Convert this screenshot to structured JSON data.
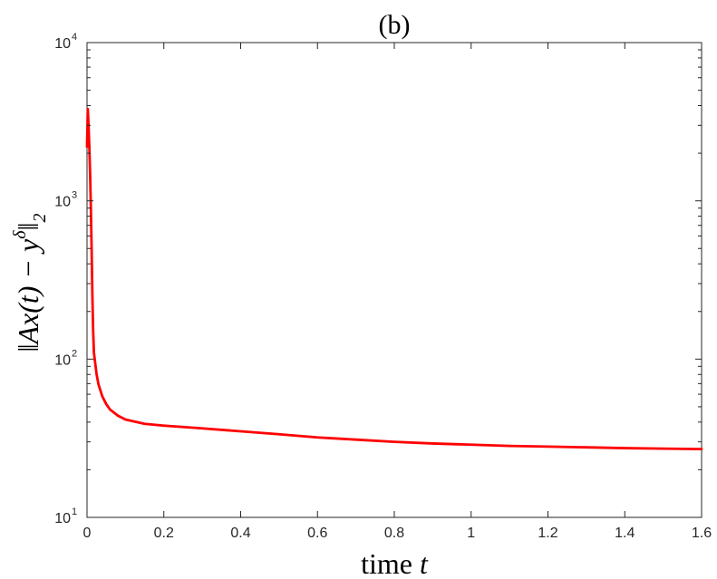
{
  "chart_data": {
    "type": "line",
    "title": "(b)",
    "xlabel_text": "time",
    "xlabel_var": "t",
    "ylabel": "||Ax(t) − y^δ||_2",
    "ylabel_parts": {
      "left": "‖Ax(",
      "t": "t",
      "mid": ") − y",
      "sup": "δ",
      "right": "‖",
      "sub": "2"
    },
    "xlim": [
      0,
      1.6
    ],
    "ylim": [
      10,
      10000
    ],
    "yscale": "log",
    "grid": false,
    "x_ticks": [
      "0",
      "0.2",
      "0.4",
      "0.6",
      "0.8",
      "1",
      "1.2",
      "1.4",
      "1.6"
    ],
    "x_tick_values": [
      0,
      0.2,
      0.4,
      0.6,
      0.8,
      1.0,
      1.2,
      1.4,
      1.6
    ],
    "y_ticks": [
      {
        "base": "10",
        "exp": "1",
        "value": 10
      },
      {
        "base": "10",
        "exp": "2",
        "value": 100
      },
      {
        "base": "10",
        "exp": "3",
        "value": 1000
      },
      {
        "base": "10",
        "exp": "4",
        "value": 10000
      }
    ],
    "series": [
      {
        "color": "#ff0000",
        "x": [
          0,
          0.002,
          0.004,
          0.006,
          0.008,
          0.01,
          0.012,
          0.014,
          0.016,
          0.018,
          0.02,
          0.025,
          0.03,
          0.04,
          0.05,
          0.06,
          0.08,
          0.1,
          0.15,
          0.2,
          0.3,
          0.4,
          0.5,
          0.6,
          0.7,
          0.8,
          0.9,
          1.0,
          1.1,
          1.2,
          1.3,
          1.4,
          1.5,
          1.6
        ],
        "y": [
          2200,
          3800,
          3000,
          2200,
          1500,
          900,
          500,
          250,
          150,
          110,
          100,
          80,
          69,
          58,
          52,
          48,
          44,
          41.5,
          39,
          38,
          36.5,
          35,
          33.5,
          32,
          31,
          30,
          29.3,
          28.8,
          28.3,
          28,
          27.7,
          27.4,
          27.2,
          27
        ]
      }
    ]
  }
}
